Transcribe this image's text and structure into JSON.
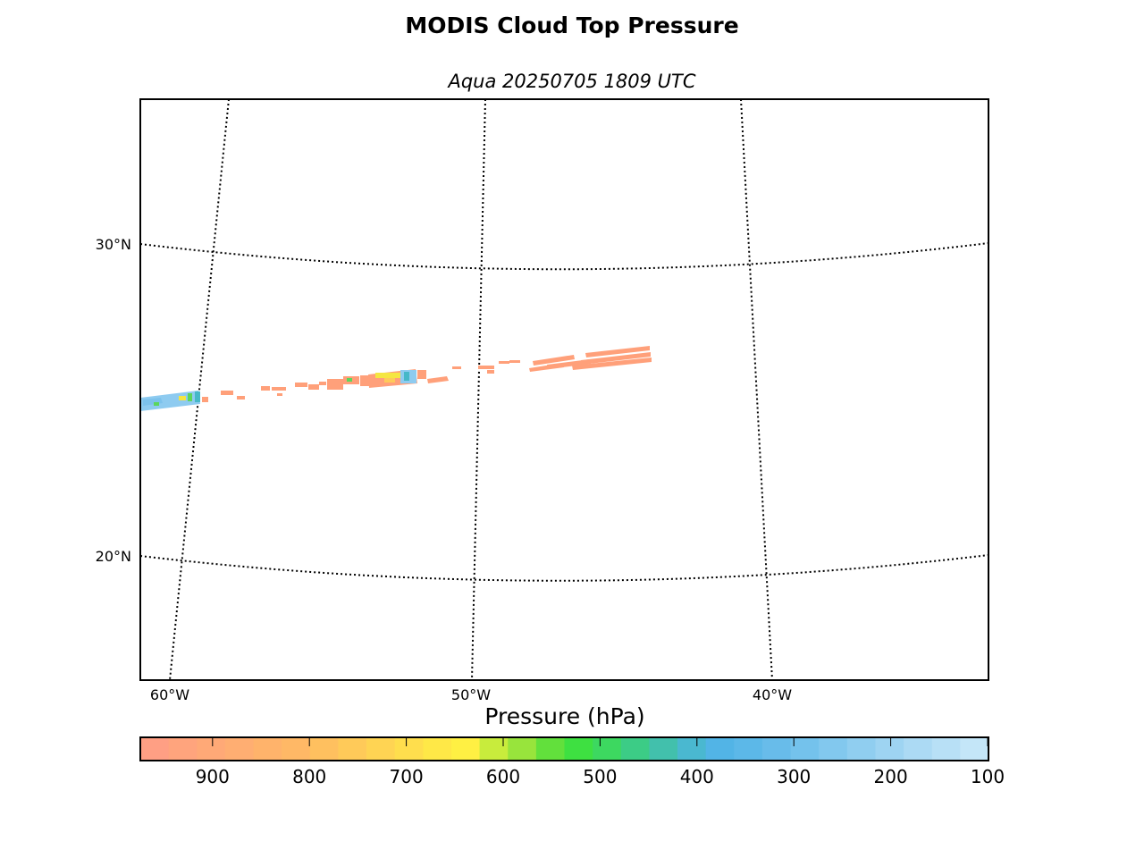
{
  "title": "MODIS Cloud Top Pressure",
  "subtitle": "Aqua 20250705 1809 UTC",
  "map": {
    "lat_labels": [
      "30°N",
      "20°N"
    ],
    "lon_labels": [
      "60°W",
      "50°W",
      "40°W"
    ],
    "gridline_style": "dotted",
    "swath_description_colors": {
      "low_cloud": "#ffa07a",
      "mid_cloud": "#f5e642",
      "high_cloud": "#8ecbf0",
      "green": "#5cd65c"
    }
  },
  "colorbar": {
    "label": "Pressure (hPa)",
    "ticks": [
      "900",
      "800",
      "700",
      "600",
      "500",
      "400",
      "300",
      "200",
      "100"
    ],
    "colors": [
      "#ff9f84",
      "#ffa47d",
      "#ffa977",
      "#ffae72",
      "#ffb36b",
      "#ffb866",
      "#ffc05f",
      "#ffca59",
      "#ffd453",
      "#ffde4d",
      "#ffe847",
      "#fff043",
      "#c8ec3c",
      "#98e43c",
      "#62e03c",
      "#3ee041",
      "#3dd860",
      "#3ccc86",
      "#42c0ac",
      "#4ab8d0",
      "#52b4e6",
      "#5cb8e8",
      "#68bcea",
      "#74c2ec",
      "#82c8ee",
      "#90cef0",
      "#9ed4f2",
      "#acdaf4",
      "#b8e0f6",
      "#c4e6f8"
    ]
  }
}
